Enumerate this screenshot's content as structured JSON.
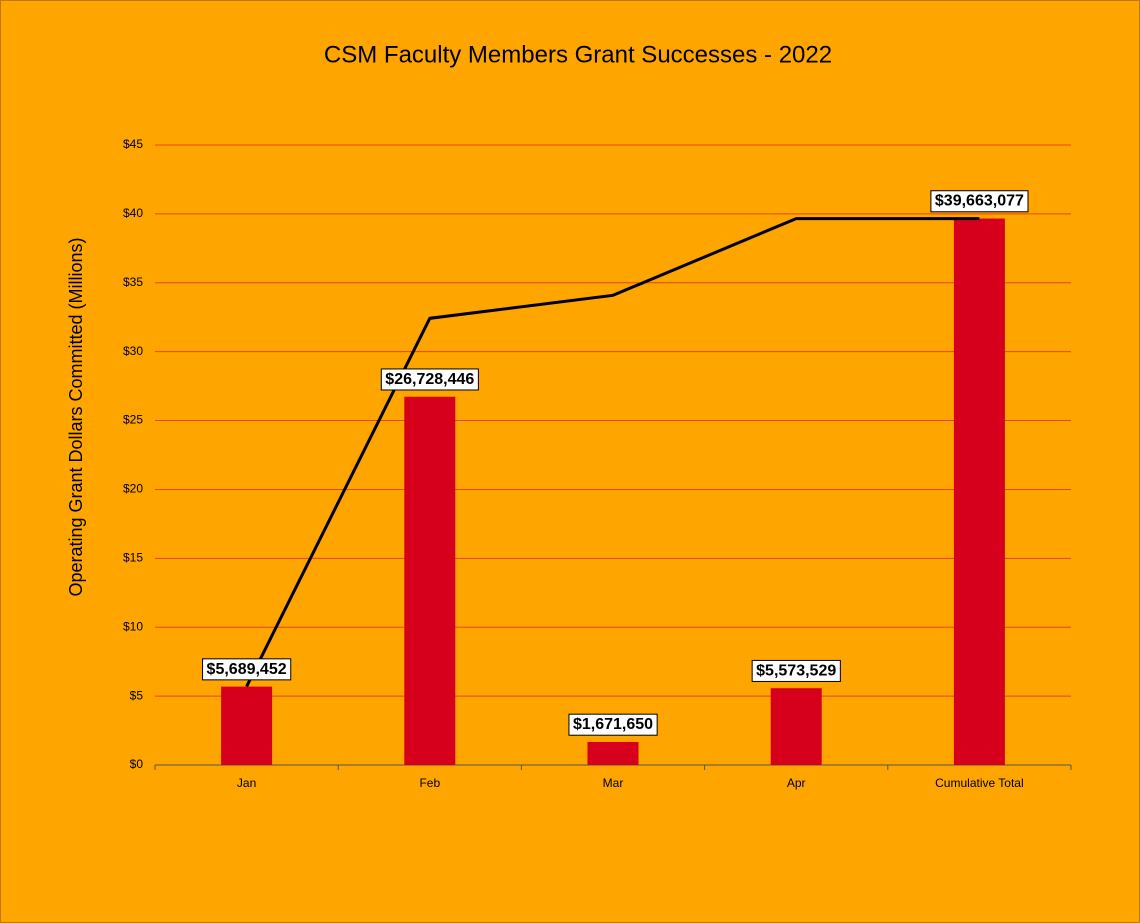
{
  "chart_data": {
    "type": "bar",
    "title": "CSM Faculty Members Grant Successes - 2022",
    "y_label": "Operating Grant Dollars Committed (Millions)",
    "categories": [
      "Jan",
      "Feb",
      "Mar",
      "Apr",
      "Cumulative Total"
    ],
    "series": [
      {
        "type": "bar",
        "color": "#d6001c",
        "values": [
          5.689452,
          26.728446,
          1.67165,
          5.573529,
          39.663077
        ],
        "value_labels": [
          "$5,689,452",
          "$26,728,446",
          "$1,671,650",
          "$5,573,529",
          "$39,663,077"
        ]
      },
      {
        "type": "line",
        "color": "#000000",
        "values": [
          5.69,
          32.42,
          34.09,
          39.66,
          39.66
        ]
      }
    ],
    "ylim": [
      0,
      45
    ],
    "yticks": [
      {
        "value": 0,
        "label": "$0"
      },
      {
        "value": 5,
        "label": "$5"
      },
      {
        "value": 10,
        "label": "$10"
      },
      {
        "value": 15,
        "label": "$15"
      },
      {
        "value": 20,
        "label": "$20"
      },
      {
        "value": 25,
        "label": "$25"
      },
      {
        "value": 30,
        "label": "$30"
      },
      {
        "value": 35,
        "label": "$35"
      },
      {
        "value": 40,
        "label": "$40"
      },
      {
        "value": 45,
        "label": "$45"
      }
    ],
    "grid": true,
    "grid_color": "#e8431a",
    "background": "#ffa500"
  }
}
